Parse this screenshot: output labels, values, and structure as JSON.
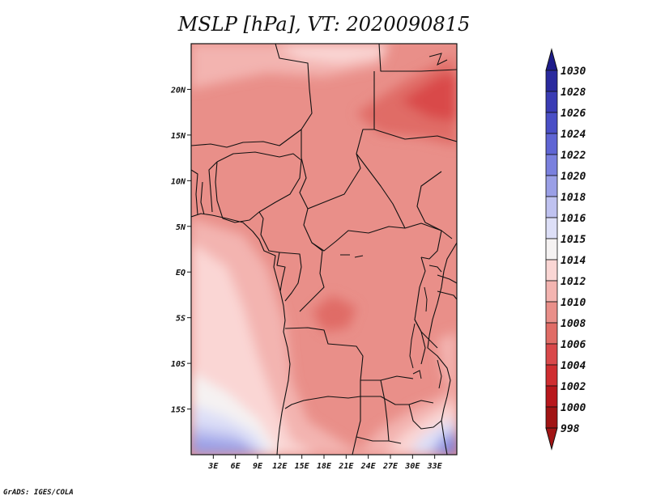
{
  "title": "MSLP [hPa], VT: 2020090815",
  "credit": "GrADS: IGES/COLA",
  "map": {
    "lon_range": [
      0,
      36
    ],
    "lat_range": [
      -20,
      25
    ],
    "x_ticks": [
      {
        "value": 3,
        "label": "3E"
      },
      {
        "value": 6,
        "label": "6E"
      },
      {
        "value": 9,
        "label": "9E"
      },
      {
        "value": 12,
        "label": "12E"
      },
      {
        "value": 15,
        "label": "15E"
      },
      {
        "value": 18,
        "label": "18E"
      },
      {
        "value": 21,
        "label": "21E"
      },
      {
        "value": 24,
        "label": "24E"
      },
      {
        "value": 27,
        "label": "27E"
      },
      {
        "value": 30,
        "label": "30E"
      },
      {
        "value": 33,
        "label": "33E"
      }
    ],
    "y_ticks": [
      {
        "value": 20,
        "label": "20N"
      },
      {
        "value": 15,
        "label": "15N"
      },
      {
        "value": 10,
        "label": "10N"
      },
      {
        "value": 5,
        "label": "5N"
      },
      {
        "value": 0,
        "label": "EQ"
      },
      {
        "value": -5,
        "label": "5S"
      },
      {
        "value": -10,
        "label": "10S"
      },
      {
        "value": -15,
        "label": "15S"
      }
    ]
  },
  "colorbar": {
    "levels": [
      {
        "label": "1030",
        "color": "#1e1c8a"
      },
      {
        "label": "1028",
        "color": "#2a2a9e"
      },
      {
        "label": "1026",
        "color": "#3a3cb4"
      },
      {
        "label": "1024",
        "color": "#4a4fc6"
      },
      {
        "label": "1022",
        "color": "#5f65d4"
      },
      {
        "label": "1020",
        "color": "#7a80de"
      },
      {
        "label": "1018",
        "color": "#9a9fe6"
      },
      {
        "label": "1016",
        "color": "#bfc2f0"
      },
      {
        "label": "1015",
        "color": "#dddff7"
      },
      {
        "label": "1014",
        "color": "#f5f2f2"
      },
      {
        "label": "1012",
        "color": "#fad6d4"
      },
      {
        "label": "1010",
        "color": "#f3b4b0"
      },
      {
        "label": "1008",
        "color": "#e98f89"
      },
      {
        "label": "1006",
        "color": "#e06c66"
      },
      {
        "label": "1004",
        "color": "#d9484a"
      },
      {
        "label": "1002",
        "color": "#cf2d30"
      },
      {
        "label": "1000",
        "color": "#b8171c"
      },
      {
        "label": "998",
        "color": "#a11414"
      }
    ],
    "top_color": "#1e1c8a",
    "bottom_color": "#a11414"
  }
}
